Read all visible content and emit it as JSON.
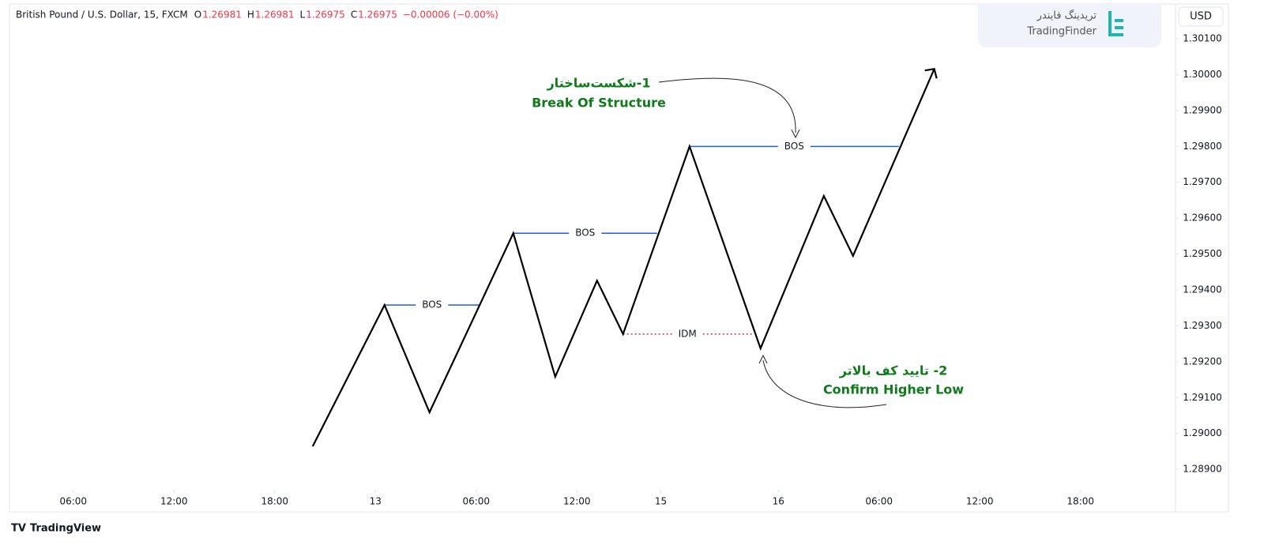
{
  "chart_data": {
    "type": "line",
    "symbol": "British Pound / U.S. Dollar, 15, FXCM",
    "ohlc": [
      {
        "label": "O",
        "value": 1.26981
      },
      {
        "label": "H",
        "value": 1.26981
      },
      {
        "label": "L",
        "value": 1.26975
      },
      {
        "label": "C",
        "value": 1.26975
      }
    ],
    "change": "−0.00006 (−0.00%)",
    "currency": "USD",
    "watermark": {
      "fa": "تریدینگ فایندر",
      "en": "TradingFinder"
    },
    "footer": "TradingView",
    "x": [
      20.26,
      24.54,
      27.22,
      32.21,
      34.71,
      37.2,
      38.75,
      42.71,
      46.94,
      50.71,
      52.45,
      57.29
    ],
    "values": [
      1.28964,
      1.29358,
      1.29059,
      1.29558,
      1.29158,
      1.29426,
      1.29277,
      1.298,
      1.29237,
      1.29662,
      1.29495,
      1.30016
    ],
    "color": "#000000",
    "levels": [
      {
        "label": "BOS",
        "value": 1.29358,
        "x": [
          24.54,
          30.19
        ],
        "color": "#1e5fd6",
        "dotted": false
      },
      {
        "label": "BOS",
        "value": 1.29558,
        "x": [
          32.21,
          40.78
        ],
        "color": "#1e5fd6",
        "dotted": false
      },
      {
        "label": "BOS",
        "value": 1.298,
        "x": [
          42.71,
          55.18
        ],
        "color": "#1e5fd6",
        "dotted": false
      },
      {
        "label": "IDM",
        "value": 1.29277,
        "x": [
          38.75,
          46.42
        ],
        "color": "#d6314a",
        "dotted": true
      }
    ],
    "annotations": [
      {
        "fa": "1-شکست‌ساختار",
        "en": "Break Of Structure"
      },
      {
        "fa": "2- تایید کف بالاتر",
        "en": "Confirm Higher Low"
      }
    ],
    "xlim": [
      2.2,
      71.66
    ],
    "ylim": [
      1.28843,
      1.30197
    ],
    "xticks": [
      {
        "value": 6,
        "label": "06:00"
      },
      {
        "value": 12,
        "label": "12:00"
      },
      {
        "value": 18,
        "label": "18:00"
      },
      {
        "value": 24,
        "label": "13"
      },
      {
        "value": 30,
        "label": "06:00"
      },
      {
        "value": 36,
        "label": "12:00"
      },
      {
        "value": 41,
        "label": "15"
      },
      {
        "value": 48,
        "label": "16"
      },
      {
        "value": 54,
        "label": "06:00"
      },
      {
        "value": 60,
        "label": "12:00"
      },
      {
        "value": 66,
        "label": "18:00"
      }
    ],
    "yticks": [
      {
        "value": 1.289,
        "label": "1.28900"
      },
      {
        "value": 1.29,
        "label": "1.29000"
      },
      {
        "value": 1.291,
        "label": "1.29100"
      },
      {
        "value": 1.292,
        "label": "1.29200"
      },
      {
        "value": 1.293,
        "label": "1.29300"
      },
      {
        "value": 1.294,
        "label": "1.29400"
      },
      {
        "value": 1.295,
        "label": "1.29500"
      },
      {
        "value": 1.296,
        "label": "1.29600"
      },
      {
        "value": 1.297,
        "label": "1.29700"
      },
      {
        "value": 1.298,
        "label": "1.29800"
      },
      {
        "value": 1.299,
        "label": "1.29900"
      },
      {
        "value": 1.3,
        "label": "1.30000"
      },
      {
        "value": 1.301,
        "label": "1.30100"
      }
    ],
    "grid": false
  }
}
